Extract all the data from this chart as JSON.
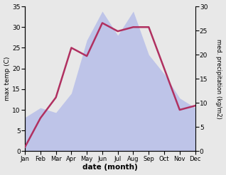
{
  "months": [
    "Jan",
    "Feb",
    "Mar",
    "Apr",
    "May",
    "Jun",
    "Jul",
    "Aug",
    "Sep",
    "Oct",
    "Nov",
    "Dec"
  ],
  "temp": [
    1,
    8,
    13,
    25,
    23,
    31,
    29,
    30,
    30,
    20,
    10,
    11
  ],
  "precip": [
    7,
    9,
    8,
    12,
    23,
    29,
    24,
    29,
    20,
    16,
    11,
    9
  ],
  "temp_ylim": [
    0,
    35
  ],
  "precip_ylim": [
    0,
    30
  ],
  "temp_color": "#b03060",
  "fill_color": "#b0b8e8",
  "fill_alpha": 0.75,
  "bg_color": "#e8e8e8",
  "xlabel": "date (month)",
  "ylabel_left": "max temp (C)",
  "ylabel_right": "med. precipitation (kg/m2)",
  "temp_linewidth": 1.8,
  "figsize": [
    3.18,
    2.47
  ],
  "dpi": 100
}
